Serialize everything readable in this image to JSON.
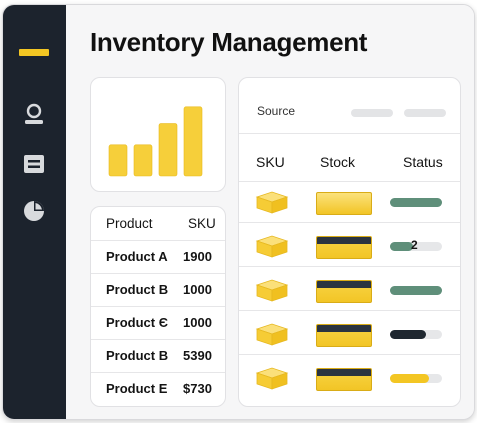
{
  "page": {
    "title": "Inventory Management"
  },
  "sidebar": {
    "items": [
      {
        "icon": "user-icon"
      },
      {
        "icon": "list-icon"
      },
      {
        "icon": "pie-chart-icon"
      }
    ],
    "accent_color": "#f3c623"
  },
  "chart_data": {
    "type": "bar",
    "categories": [
      "",
      "",
      "",
      ""
    ],
    "values": [
      0.41,
      0.41,
      0.69,
      0.91
    ],
    "ylim": [
      0,
      1
    ],
    "color": "#f6cf3a",
    "title": "",
    "xlabel": "",
    "ylabel": ""
  },
  "products_table": {
    "headers": [
      "Product",
      "SKU"
    ],
    "rows": [
      [
        "Product A",
        "1900"
      ],
      [
        "Product B",
        "1000"
      ],
      [
        "Product Є",
        "1000"
      ],
      [
        "Product B",
        "5390"
      ],
      [
        "Product E",
        "$730"
      ]
    ]
  },
  "stock_panel": {
    "source_label": "Source",
    "headers": [
      "SKU",
      "Stock",
      "Status"
    ],
    "rows": [
      {
        "stock_style": "yellow",
        "status_fraction": 1.0,
        "status_color": "#5f8f7a",
        "status_text": ""
      },
      {
        "stock_style": "dark",
        "status_fraction": 0.45,
        "status_color": "#5f8f7a",
        "status_text": "2"
      },
      {
        "stock_style": "dark",
        "status_fraction": 1.0,
        "status_color": "#5f8f7a",
        "status_text": ""
      },
      {
        "stock_style": "dark",
        "status_fraction": 0.7,
        "status_color": "#1f2730",
        "status_text": ""
      },
      {
        "stock_style": "dark",
        "status_fraction": 0.75,
        "status_color": "#f3c623",
        "status_text": ""
      }
    ]
  }
}
